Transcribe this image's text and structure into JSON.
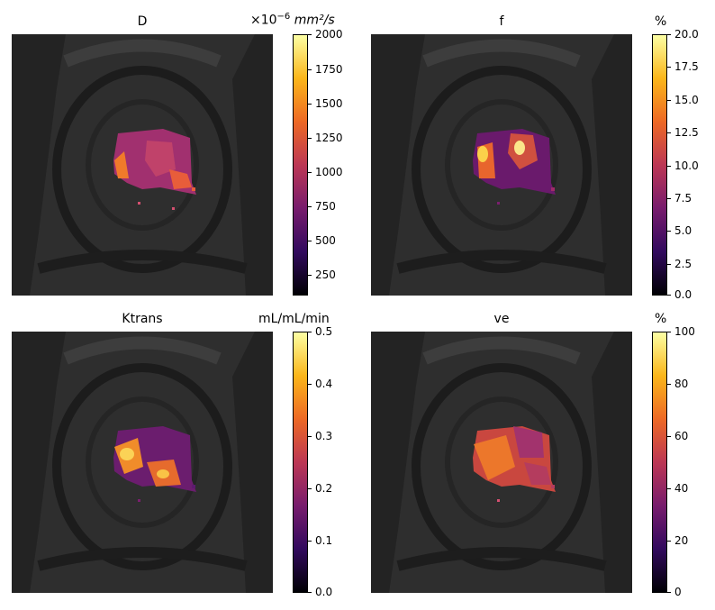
{
  "panels": [
    {
      "title": "D",
      "unit_prefix": "×10",
      "unit_exp": "−6",
      "unit_main": " mm²/s",
      "cbar_ticks": [
        "2000",
        "1750",
        "1500",
        "1250",
        "1000",
        "750",
        "500",
        "250"
      ]
    },
    {
      "title": "f",
      "unit": "%",
      "cbar_ticks": [
        "20.0",
        "17.5",
        "15.0",
        "12.5",
        "10.0",
        "7.5",
        "5.0",
        "2.5",
        "0.0"
      ]
    },
    {
      "title": "Ktrans",
      "unit": "mL/mL/min",
      "cbar_ticks": [
        "0.5",
        "0.4",
        "0.3",
        "0.2",
        "0.1",
        "0.0"
      ]
    },
    {
      "title": "ve",
      "unit": "%",
      "cbar_ticks": [
        "100",
        "80",
        "60",
        "40",
        "20",
        "0"
      ]
    }
  ],
  "colors": {
    "background_mri": "#2b2b2b",
    "colormap": "inferno"
  }
}
